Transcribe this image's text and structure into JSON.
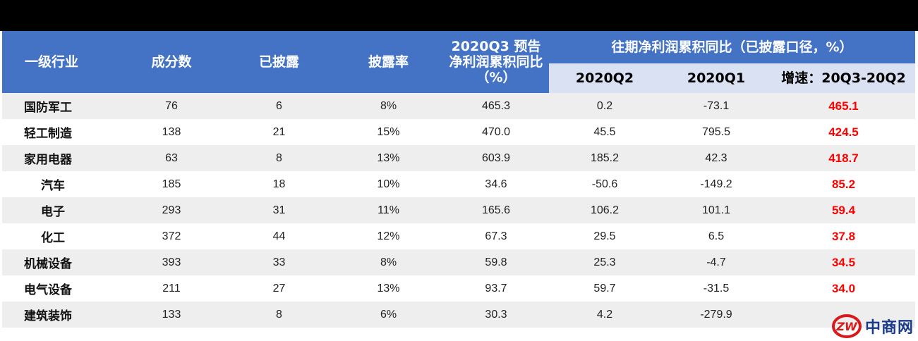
{
  "headers": {
    "industry": "一级行业",
    "constituents": "成分数",
    "disclosed": "已披露",
    "disclosure_rate": "披露率",
    "q3_forecast": "2020Q3 预告净利润累积同比（%）",
    "past_group": "往期净利润累积同比（已披露口径，%）",
    "q2": "2020Q2",
    "q1": "2020Q1",
    "growth": "增速：20Q3-20Q2"
  },
  "rows": [
    {
      "industry": "国防军工",
      "constituents": "76",
      "disclosed": "6",
      "rate": "8%",
      "q3": "465.3",
      "q2": "0.2",
      "q1": "-73.1",
      "growth": "465.1"
    },
    {
      "industry": "轻工制造",
      "constituents": "138",
      "disclosed": "21",
      "rate": "15%",
      "q3": "470.0",
      "q2": "45.5",
      "q1": "795.5",
      "growth": "424.5"
    },
    {
      "industry": "家用电器",
      "constituents": "63",
      "disclosed": "8",
      "rate": "13%",
      "q3": "603.9",
      "q2": "185.2",
      "q1": "42.3",
      "growth": "418.7"
    },
    {
      "industry": "汽车",
      "constituents": "185",
      "disclosed": "18",
      "rate": "10%",
      "q3": "34.6",
      "q2": "-50.6",
      "q1": "-149.2",
      "growth": "85.2"
    },
    {
      "industry": "电子",
      "constituents": "293",
      "disclosed": "31",
      "rate": "11%",
      "q3": "165.6",
      "q2": "106.2",
      "q1": "101.1",
      "growth": "59.4"
    },
    {
      "industry": "化工",
      "constituents": "372",
      "disclosed": "44",
      "rate": "12%",
      "q3": "67.3",
      "q2": "29.5",
      "q1": "6.5",
      "growth": "37.8"
    },
    {
      "industry": "机械设备",
      "constituents": "393",
      "disclosed": "33",
      "rate": "8%",
      "q3": "59.8",
      "q2": "25.3",
      "q1": "-4.7",
      "growth": "34.5"
    },
    {
      "industry": "电气设备",
      "constituents": "211",
      "disclosed": "27",
      "rate": "13%",
      "q3": "93.7",
      "q2": "59.7",
      "q1": "-31.5",
      "growth": "34.0"
    },
    {
      "industry": "建筑装饰",
      "constituents": "133",
      "disclosed": "8",
      "rate": "6%",
      "q3": "30.3",
      "q2": "4.2",
      "q1": "-279.9",
      "growth": ""
    }
  ],
  "watermark": {
    "text": "中商网",
    "logo_letters": "ZW",
    "color": "#d7191c"
  },
  "colors": {
    "header_bg": "#4472c4",
    "subheader_bg": "#d9e1f2",
    "highlight_text": "#ff0000",
    "stripe": "#eeeeee"
  }
}
